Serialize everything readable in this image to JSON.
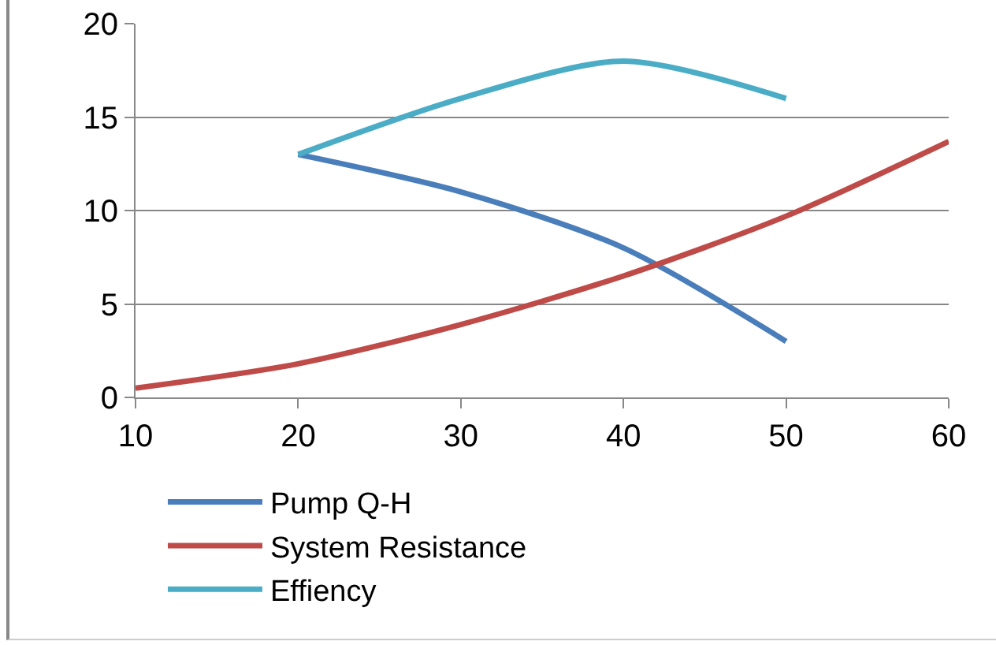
{
  "chart_data": {
    "type": "line",
    "x": [
      20,
      30,
      40,
      50
    ],
    "series": [
      {
        "name": "Pump Q-H",
        "color": "#4a7ebb",
        "values": [
          13,
          11,
          8,
          3
        ]
      },
      {
        "name": "System Resistance",
        "color": "#be4b48",
        "x": [
          10,
          20,
          30,
          40,
          50,
          60
        ],
        "values": [
          0.5,
          1.8,
          3.9,
          6.5,
          9.7,
          13.7
        ]
      },
      {
        "name": "Effiency",
        "color": "#4bacc6",
        "values": [
          13,
          16,
          18,
          16
        ]
      }
    ],
    "xlim": [
      10,
      60
    ],
    "xticks": [
      10,
      20,
      30,
      40,
      50,
      60
    ],
    "ylim": [
      0,
      20
    ],
    "yticks": [
      0,
      5,
      10,
      15,
      20
    ],
    "grid": "y",
    "legend": "bottom",
    "marker": "none",
    "line_style": "solid"
  }
}
